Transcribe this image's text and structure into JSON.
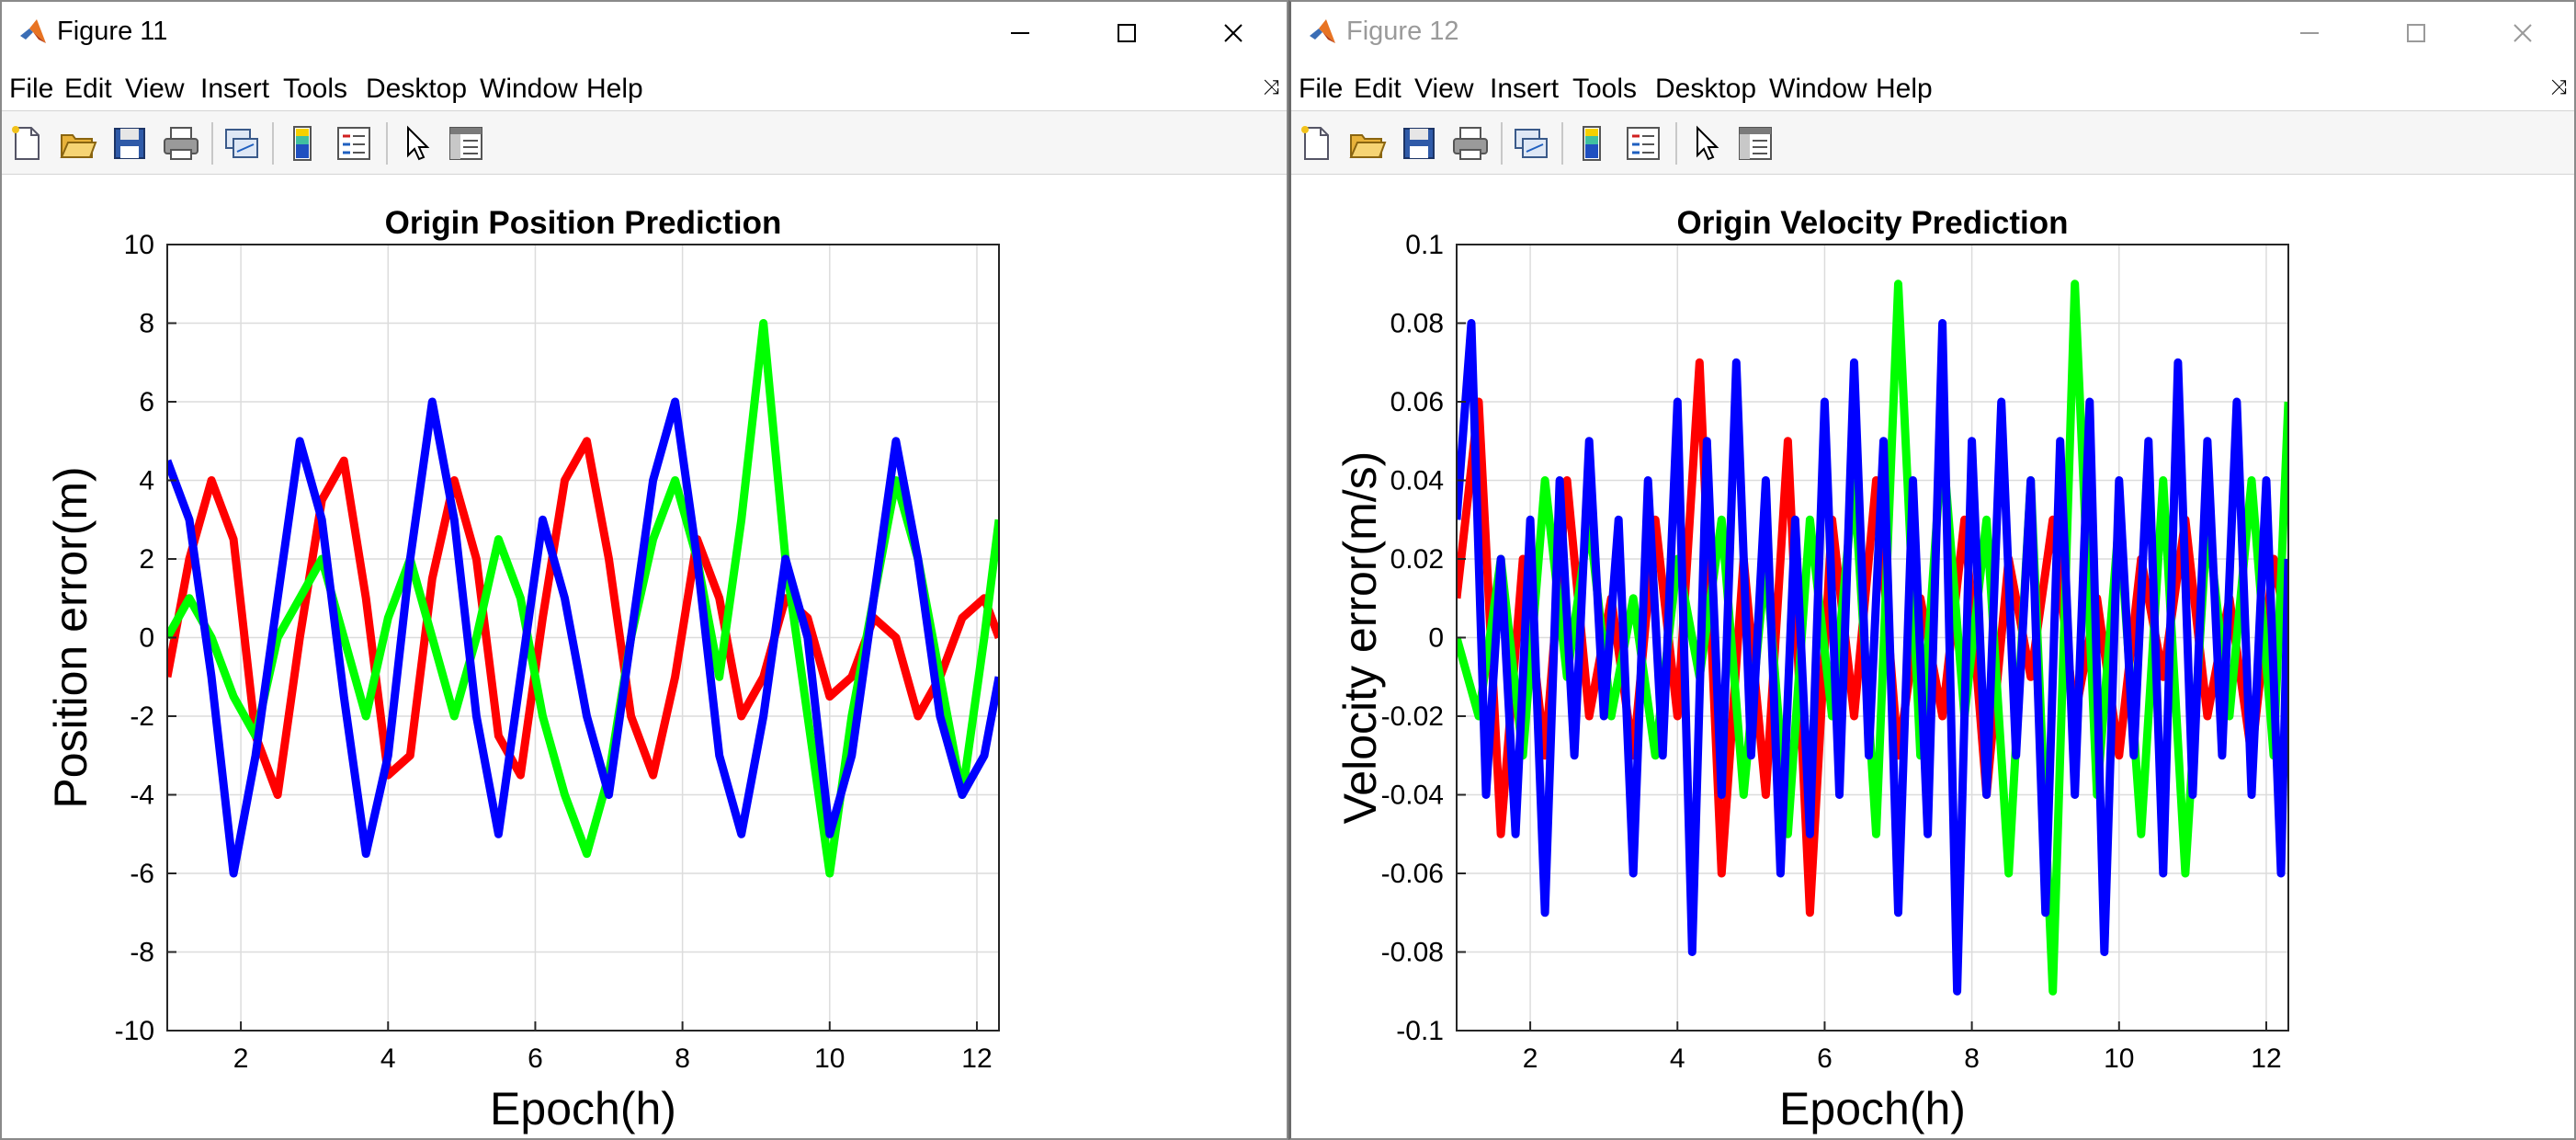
{
  "menu_items": [
    "File",
    "Edit",
    "View",
    "Insert",
    "Tools",
    "Desktop",
    "Window",
    "Help"
  ],
  "toolbar_icons": [
    "new-figure-icon",
    "open-file-icon",
    "save-icon",
    "print-icon",
    "link-plot-icon",
    "insert-colorbar-icon",
    "insert-legend-icon",
    "edit-plot-arrow-icon",
    "property-inspector-icon"
  ],
  "colors": {
    "series_1": "#ff0000",
    "series_2": "#00ff00",
    "series_3": "#0000ff"
  },
  "windows": [
    {
      "title": "Figure 11",
      "active": true,
      "chart_data": {
        "type": "line",
        "title": "Origin Position Prediction",
        "xlabel": "Epoch(h)",
        "ylabel": "Position error(m)",
        "xlim": [
          1,
          12.3
        ],
        "ylim": [
          -10,
          10
        ],
        "xticks": [
          2,
          4,
          6,
          8,
          10,
          12
        ],
        "yticks": [
          -10,
          -8,
          -6,
          -4,
          -2,
          0,
          2,
          4,
          6,
          8,
          10
        ],
        "grid": true,
        "series": [
          {
            "color": "#ff0000",
            "x": [
              1.0,
              1.3,
              1.6,
              1.9,
              2.2,
              2.5,
              2.8,
              3.1,
              3.4,
              3.7,
              4.0,
              4.3,
              4.6,
              4.9,
              5.2,
              5.5,
              5.8,
              6.1,
              6.4,
              6.7,
              7.0,
              7.3,
              7.6,
              7.9,
              8.2,
              8.5,
              8.8,
              9.1,
              9.4,
              9.7,
              10.0,
              10.3,
              10.6,
              10.9,
              11.2,
              11.5,
              11.8,
              12.1,
              12.3
            ],
            "values": [
              -1.0,
              2.0,
              4.0,
              2.5,
              -2.5,
              -4.0,
              0.0,
              3.5,
              4.5,
              1.0,
              -3.5,
              -3.0,
              1.5,
              4.0,
              2.0,
              -2.5,
              -3.5,
              0.5,
              4.0,
              5.0,
              2.0,
              -2.0,
              -3.5,
              -1.0,
              2.5,
              1.0,
              -2.0,
              -1.0,
              1.0,
              0.5,
              -1.5,
              -1.0,
              0.5,
              0.0,
              -2.0,
              -1.0,
              0.5,
              1.0,
              0.0
            ]
          },
          {
            "color": "#00ff00",
            "x": [
              1.0,
              1.3,
              1.6,
              1.9,
              2.2,
              2.5,
              2.8,
              3.1,
              3.4,
              3.7,
              4.0,
              4.3,
              4.6,
              4.9,
              5.2,
              5.5,
              5.8,
              6.1,
              6.4,
              6.7,
              7.0,
              7.3,
              7.6,
              7.9,
              8.2,
              8.5,
              8.8,
              9.1,
              9.4,
              9.7,
              10.0,
              10.3,
              10.6,
              10.9,
              11.2,
              11.5,
              11.8,
              12.1,
              12.3
            ],
            "values": [
              0.0,
              1.0,
              0.0,
              -1.5,
              -2.5,
              0.0,
              1.0,
              2.0,
              0.0,
              -2.0,
              0.5,
              2.0,
              0.0,
              -2.0,
              0.0,
              2.5,
              1.0,
              -2.0,
              -4.0,
              -5.5,
              -3.5,
              0.0,
              2.5,
              4.0,
              2.0,
              -1.0,
              3.0,
              8.0,
              2.0,
              -2.0,
              -6.0,
              -2.0,
              1.0,
              4.0,
              2.0,
              -1.0,
              -4.0,
              0.0,
              3.0
            ]
          },
          {
            "color": "#0000ff",
            "x": [
              1.0,
              1.3,
              1.6,
              1.9,
              2.2,
              2.5,
              2.8,
              3.1,
              3.4,
              3.7,
              4.0,
              4.3,
              4.6,
              4.9,
              5.2,
              5.5,
              5.8,
              6.1,
              6.4,
              6.7,
              7.0,
              7.3,
              7.6,
              7.9,
              8.2,
              8.5,
              8.8,
              9.1,
              9.4,
              9.7,
              10.0,
              10.3,
              10.6,
              10.9,
              11.2,
              11.5,
              11.8,
              12.1,
              12.3
            ],
            "values": [
              4.5,
              3.0,
              -1.0,
              -6.0,
              -3.0,
              1.0,
              5.0,
              3.0,
              -1.5,
              -5.5,
              -3.0,
              2.0,
              6.0,
              3.0,
              -2.0,
              -5.0,
              -1.0,
              3.0,
              1.0,
              -2.0,
              -4.0,
              0.0,
              4.0,
              6.0,
              2.0,
              -3.0,
              -5.0,
              -2.0,
              2.0,
              0.0,
              -5.0,
              -3.0,
              1.0,
              5.0,
              2.0,
              -2.0,
              -4.0,
              -3.0,
              -1.0
            ]
          }
        ]
      }
    },
    {
      "title": "Figure 12",
      "active": false,
      "chart_data": {
        "type": "line",
        "title": "Origin Velocity Prediction",
        "xlabel": "Epoch(h)",
        "ylabel": "Velocity error(m/s)",
        "xlim": [
          1,
          12.3
        ],
        "ylim": [
          -0.1,
          0.1
        ],
        "xticks": [
          2,
          4,
          6,
          8,
          10,
          12
        ],
        "yticks": [
          -0.1,
          -0.08,
          -0.06,
          -0.04,
          -0.02,
          0,
          0.02,
          0.04,
          0.06,
          0.08,
          0.1
        ],
        "grid": true,
        "series": [
          {
            "color": "#ff0000",
            "x": [
              1.0,
              1.3,
              1.6,
              1.9,
              2.2,
              2.5,
              2.8,
              3.1,
              3.4,
              3.7,
              4.0,
              4.3,
              4.6,
              4.9,
              5.2,
              5.5,
              5.8,
              6.1,
              6.4,
              6.7,
              7.0,
              7.3,
              7.6,
              7.9,
              8.2,
              8.5,
              8.8,
              9.1,
              9.4,
              9.7,
              10.0,
              10.3,
              10.6,
              10.9,
              11.2,
              11.5,
              11.8,
              12.1,
              12.3
            ],
            "values": [
              0.01,
              0.06,
              -0.05,
              0.02,
              -0.03,
              0.04,
              -0.02,
              0.01,
              -0.03,
              0.03,
              -0.02,
              0.07,
              -0.06,
              0.02,
              -0.04,
              0.05,
              -0.07,
              0.03,
              -0.02,
              0.04,
              -0.03,
              0.01,
              -0.02,
              0.03,
              -0.04,
              0.02,
              -0.01,
              0.03,
              -0.02,
              0.01,
              -0.03,
              0.02,
              -0.01,
              0.03,
              -0.02,
              0.01,
              -0.03,
              0.02,
              0.0
            ]
          },
          {
            "color": "#00ff00",
            "x": [
              1.0,
              1.3,
              1.6,
              1.9,
              2.2,
              2.5,
              2.8,
              3.1,
              3.4,
              3.7,
              4.0,
              4.3,
              4.6,
              4.9,
              5.2,
              5.5,
              5.8,
              6.1,
              6.4,
              6.7,
              7.0,
              7.3,
              7.6,
              7.9,
              8.2,
              8.5,
              8.8,
              9.1,
              9.4,
              9.7,
              10.0,
              10.3,
              10.6,
              10.9,
              11.2,
              11.5,
              11.8,
              12.1,
              12.3
            ],
            "values": [
              0.0,
              -0.02,
              0.02,
              -0.03,
              0.04,
              -0.01,
              0.03,
              -0.02,
              0.01,
              -0.03,
              0.02,
              -0.01,
              0.03,
              -0.04,
              0.02,
              -0.05,
              0.03,
              -0.02,
              0.04,
              -0.05,
              0.09,
              -0.03,
              0.05,
              -0.02,
              0.03,
              -0.06,
              0.04,
              -0.09,
              0.09,
              -0.04,
              0.03,
              -0.05,
              0.04,
              -0.06,
              0.03,
              -0.02,
              0.04,
              -0.03,
              0.06
            ]
          },
          {
            "color": "#0000ff",
            "x": [
              1.0,
              1.2,
              1.4,
              1.6,
              1.8,
              2.0,
              2.2,
              2.4,
              2.6,
              2.8,
              3.0,
              3.2,
              3.4,
              3.6,
              3.8,
              4.0,
              4.2,
              4.4,
              4.6,
              4.8,
              5.0,
              5.2,
              5.4,
              5.6,
              5.8,
              6.0,
              6.2,
              6.4,
              6.6,
              6.8,
              7.0,
              7.2,
              7.4,
              7.6,
              7.8,
              8.0,
              8.2,
              8.4,
              8.6,
              8.8,
              9.0,
              9.2,
              9.4,
              9.6,
              9.8,
              10.0,
              10.2,
              10.4,
              10.6,
              10.8,
              11.0,
              11.2,
              11.4,
              11.6,
              11.8,
              12.0,
              12.2,
              12.3
            ],
            "values": [
              0.03,
              0.08,
              -0.04,
              0.02,
              -0.05,
              0.03,
              -0.07,
              0.04,
              -0.03,
              0.05,
              -0.02,
              0.03,
              -0.06,
              0.04,
              -0.03,
              0.06,
              -0.08,
              0.05,
              -0.04,
              0.07,
              -0.03,
              0.04,
              -0.06,
              0.03,
              -0.05,
              0.06,
              -0.04,
              0.07,
              -0.03,
              0.05,
              -0.07,
              0.04,
              -0.05,
              0.08,
              -0.09,
              0.05,
              -0.04,
              0.06,
              -0.03,
              0.04,
              -0.07,
              0.05,
              -0.04,
              0.06,
              -0.08,
              0.04,
              -0.03,
              0.05,
              -0.06,
              0.07,
              -0.04,
              0.05,
              -0.03,
              0.06,
              -0.04,
              0.04,
              -0.06,
              0.02
            ]
          }
        ]
      }
    }
  ]
}
